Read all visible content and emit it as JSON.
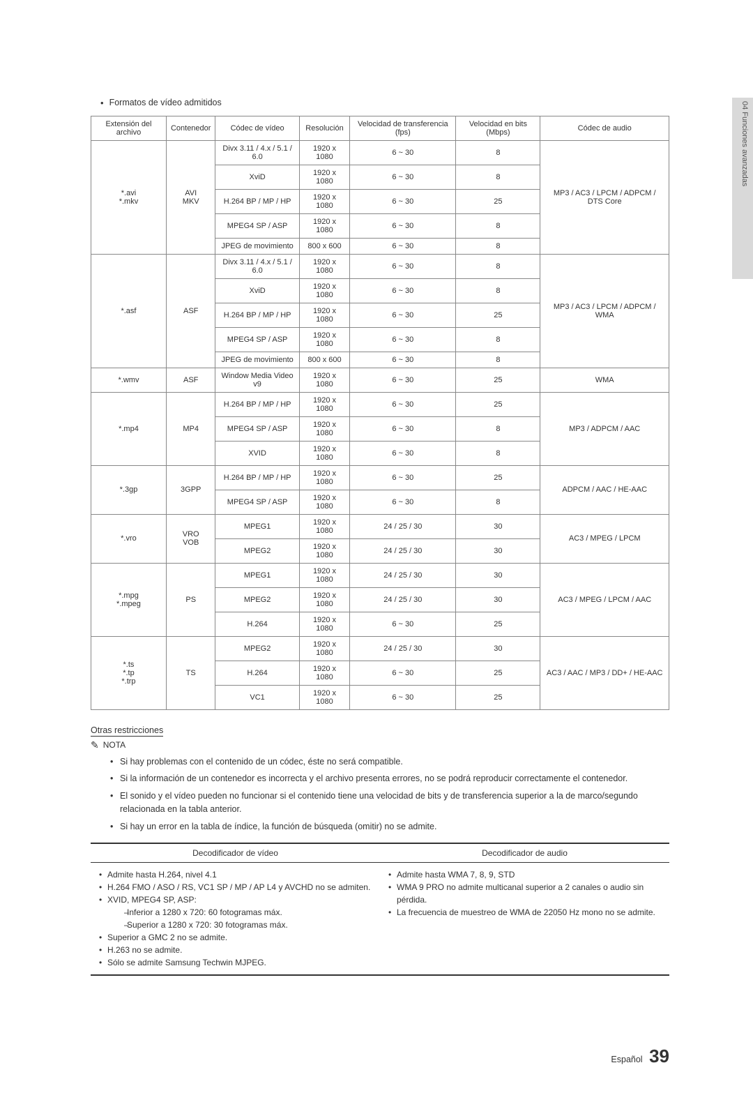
{
  "sideLabel": "04 Funciones avanzadas",
  "headingBullet": "Formatos de vídeo admitidos",
  "table": {
    "headers": [
      "Extensión del archivo",
      "Contenedor",
      "Códec de vídeo",
      "Resolución",
      "Velocidad de transferencia (fps)",
      "Velocidad en bits (Mbps)",
      "Códec de audio"
    ],
    "groups": [
      {
        "ext": "*.avi\n*.mkv",
        "container": "AVI\nMKV",
        "audio": "MP3 / AC3 / LPCM / ADPCM / DTS Core",
        "rows": [
          [
            "Divx 3.11 / 4.x / 5.1 / 6.0",
            "1920 x 1080",
            "6 ~ 30",
            "8"
          ],
          [
            "XviD",
            "1920 x 1080",
            "6 ~ 30",
            "8"
          ],
          [
            "H.264 BP / MP / HP",
            "1920 x 1080",
            "6 ~ 30",
            "25"
          ],
          [
            "MPEG4 SP / ASP",
            "1920 x 1080",
            "6 ~ 30",
            "8"
          ],
          [
            "JPEG de movimiento",
            "800 x 600",
            "6 ~ 30",
            "8"
          ]
        ]
      },
      {
        "ext": "*.asf",
        "container": "ASF",
        "audio": "MP3 / AC3 / LPCM / ADPCM / WMA",
        "rows": [
          [
            "Divx 3.11 / 4.x / 5.1 / 6.0",
            "1920 x 1080",
            "6 ~ 30",
            "8"
          ],
          [
            "XviD",
            "1920 x 1080",
            "6 ~ 30",
            "8"
          ],
          [
            "H.264 BP / MP / HP",
            "1920 x 1080",
            "6 ~ 30",
            "25"
          ],
          [
            "MPEG4 SP / ASP",
            "1920 x 1080",
            "6 ~ 30",
            "8"
          ],
          [
            "JPEG de movimiento",
            "800 x 600",
            "6 ~ 30",
            "8"
          ]
        ]
      },
      {
        "ext": "*.wmv",
        "container": "ASF",
        "audio": "WMA",
        "rows": [
          [
            "Window Media Video v9",
            "1920 x 1080",
            "6 ~ 30",
            "25"
          ]
        ]
      },
      {
        "ext": "*.mp4",
        "container": "MP4",
        "audio": "MP3 / ADPCM / AAC",
        "rows": [
          [
            "H.264 BP / MP / HP",
            "1920 x 1080",
            "6 ~ 30",
            "25"
          ],
          [
            "MPEG4 SP / ASP",
            "1920 x 1080",
            "6 ~ 30",
            "8"
          ],
          [
            "XVID",
            "1920 x 1080",
            "6 ~ 30",
            "8"
          ]
        ]
      },
      {
        "ext": "*.3gp",
        "container": "3GPP",
        "audio": "ADPCM / AAC / HE-AAC",
        "rows": [
          [
            "H.264 BP / MP / HP",
            "1920 x 1080",
            "6 ~ 30",
            "25"
          ],
          [
            "MPEG4 SP / ASP",
            "1920 x 1080",
            "6 ~ 30",
            "8"
          ]
        ]
      },
      {
        "ext": "*.vro",
        "container": "VRO\nVOB",
        "audio": "AC3 / MPEG / LPCM",
        "rows": [
          [
            "MPEG1",
            "1920 x 1080",
            "24 / 25 / 30",
            "30"
          ],
          [
            "MPEG2",
            "1920 x 1080",
            "24 / 25 / 30",
            "30"
          ]
        ]
      },
      {
        "ext": "*.mpg\n*.mpeg",
        "container": "PS",
        "audio": "AC3 / MPEG / LPCM / AAC",
        "rows": [
          [
            "MPEG1",
            "1920 x 1080",
            "24 / 25 / 30",
            "30"
          ],
          [
            "MPEG2",
            "1920 x 1080",
            "24 / 25 / 30",
            "30"
          ],
          [
            "H.264",
            "1920 x 1080",
            "6 ~ 30",
            "25"
          ]
        ]
      },
      {
        "ext": "*.ts\n*.tp\n*.trp",
        "container": "TS",
        "audio": "AC3 / AAC / MP3 / DD+ / HE-AAC",
        "rows": [
          [
            "MPEG2",
            "1920 x 1080",
            "24 / 25 / 30",
            "30"
          ],
          [
            "H.264",
            "1920 x 1080",
            "6 ~ 30",
            "25"
          ],
          [
            "VC1",
            "1920 x 1080",
            "6 ~ 30",
            "25"
          ]
        ]
      }
    ]
  },
  "otrasTitle": "Otras restricciones",
  "notaLabel": "NOTA",
  "notes": [
    "Si hay problemas con el contenido de un códec, éste no será compatible.",
    "Si la información de un contenedor es incorrecta y el archivo presenta errores, no se podrá reproducir correctamente el contenedor.",
    "El sonido y el vídeo pueden no funcionar si el contenido tiene una velocidad de bits y de transferencia superior a la de marco/segundo relacionada en la tabla anterior.",
    "Si hay un error en la tabla de índice, la función de búsqueda (omitir) no se admite."
  ],
  "decoderHeaders": [
    "Decodificador de vídeo",
    "Decodificador de audio"
  ],
  "videoDecoder": {
    "lines": [
      "Admite hasta H.264, nivel 4.1",
      "H.264 FMO / ASO / RS, VC1 SP / MP / AP L4 y AVCHD no se admiten.",
      "XVID, MPEG4 SP, ASP:"
    ],
    "sub": [
      "Inferior a 1280 x 720: 60 fotogramas máx.",
      "Superior a 1280 x 720: 30 fotogramas máx."
    ],
    "tail": [
      "Superior a GMC 2 no se admite.",
      "H.263 no se admite.",
      "Sólo se admite Samsung Techwin MJPEG."
    ]
  },
  "audioDecoder": [
    "Admite hasta WMA 7, 8, 9, STD",
    "WMA 9 PRO no admite multicanal superior a 2 canales o audio sin pérdida.",
    "La frecuencia de muestreo de WMA de 22050 Hz mono no se admite."
  ],
  "footer": {
    "lang": "Español",
    "page": "39"
  }
}
